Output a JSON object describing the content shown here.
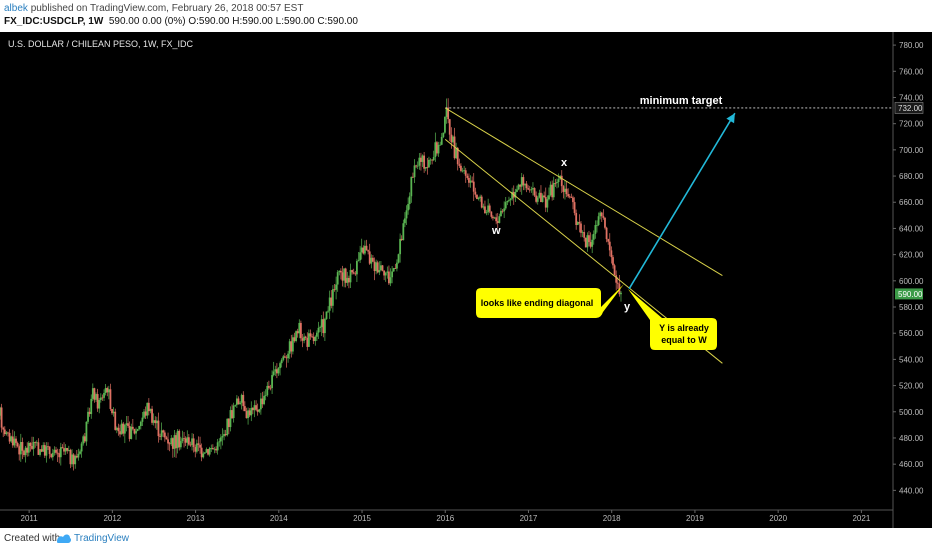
{
  "header": {
    "author": "albek",
    "published_text": "published on TradingView.com, February 26, 2018 00:57 EST",
    "symbol": "FX_IDC:USDCLP, 1W",
    "quote": "590.00 0.00 (0%) O:590.00 H:590.00 L:590.00 C:590.00"
  },
  "footer": {
    "created_with": "Created with",
    "brand": "TradingView"
  },
  "colors": {
    "background": "#000000",
    "up_candle": "#5ab552",
    "down_candle": "#e07163",
    "channel": "#d9d24a",
    "target_arrow": "#22b8d8",
    "callout": "#ffff00",
    "last_price": "#3c9b48"
  },
  "chart_data": {
    "type": "candlestick",
    "title": "U.S. DOLLAR / CHILEAN PESO, 1W, FX_IDC",
    "x_ticks": [
      "2011",
      "2012",
      "2013",
      "2014",
      "2015",
      "2016",
      "2017",
      "2018",
      "2019",
      "2020",
      "2021"
    ],
    "y_ticks": [
      "780.00",
      "760.00",
      "740.00",
      "720.00",
      "700.00",
      "680.00",
      "660.00",
      "640.00",
      "620.00",
      "600.00",
      "580.00",
      "560.00",
      "540.00",
      "520.00",
      "500.00",
      "480.00",
      "460.00",
      "440.00"
    ],
    "ylim": [
      425,
      790
    ],
    "xlim": [
      2010.67,
      2021.4
    ],
    "price_path": [
      [
        2010.67,
        497
      ],
      [
        2010.75,
        482
      ],
      [
        2010.85,
        478
      ],
      [
        2010.95,
        468
      ],
      [
        2011.05,
        476
      ],
      [
        2011.15,
        472
      ],
      [
        2011.25,
        470
      ],
      [
        2011.35,
        466
      ],
      [
        2011.45,
        470
      ],
      [
        2011.55,
        462
      ],
      [
        2011.62,
        470
      ],
      [
        2011.72,
        490
      ],
      [
        2011.78,
        515
      ],
      [
        2011.85,
        505
      ],
      [
        2011.95,
        520
      ],
      [
        2012.05,
        492
      ],
      [
        2012.15,
        485
      ],
      [
        2012.3,
        485
      ],
      [
        2012.45,
        505
      ],
      [
        2012.55,
        490
      ],
      [
        2012.65,
        480
      ],
      [
        2012.75,
        478
      ],
      [
        2012.85,
        478
      ],
      [
        2012.95,
        478
      ],
      [
        2013.05,
        472
      ],
      [
        2013.15,
        472
      ],
      [
        2013.25,
        472
      ],
      [
        2013.35,
        480
      ],
      [
        2013.45,
        500
      ],
      [
        2013.55,
        510
      ],
      [
        2013.65,
        500
      ],
      [
        2013.75,
        500
      ],
      [
        2013.85,
        515
      ],
      [
        2013.95,
        525
      ],
      [
        2014.05,
        540
      ],
      [
        2014.15,
        550
      ],
      [
        2014.25,
        562
      ],
      [
        2014.35,
        555
      ],
      [
        2014.45,
        555
      ],
      [
        2014.55,
        565
      ],
      [
        2014.65,
        585
      ],
      [
        2014.75,
        605
      ],
      [
        2014.85,
        602
      ],
      [
        2014.95,
        612
      ],
      [
        2015.05,
        625
      ],
      [
        2015.15,
        612
      ],
      [
        2015.25,
        612
      ],
      [
        2015.35,
        602
      ],
      [
        2015.45,
        618
      ],
      [
        2015.55,
        650
      ],
      [
        2015.6,
        672
      ],
      [
        2015.7,
        692
      ],
      [
        2015.8,
        688
      ],
      [
        2015.9,
        698
      ],
      [
        2015.98,
        708
      ],
      [
        2016.02,
        730
      ],
      [
        2016.08,
        715
      ],
      [
        2016.15,
        695
      ],
      [
        2016.25,
        680
      ],
      [
        2016.35,
        672
      ],
      [
        2016.45,
        660
      ],
      [
        2016.55,
        650
      ],
      [
        2016.62,
        645
      ],
      [
        2016.7,
        655
      ],
      [
        2016.8,
        665
      ],
      [
        2016.9,
        676
      ],
      [
        2017.0,
        670
      ],
      [
        2017.1,
        665
      ],
      [
        2017.2,
        662
      ],
      [
        2017.3,
        668
      ],
      [
        2017.38,
        678
      ],
      [
        2017.48,
        670
      ],
      [
        2017.55,
        655
      ],
      [
        2017.65,
        640
      ],
      [
        2017.7,
        632
      ],
      [
        2017.75,
        625
      ],
      [
        2017.82,
        640
      ],
      [
        2017.88,
        650
      ],
      [
        2017.95,
        640
      ],
      [
        2018.0,
        615
      ],
      [
        2018.08,
        602
      ],
      [
        2018.12,
        595
      ],
      [
        2018.15,
        590
      ]
    ],
    "last_price": "590.00",
    "target_price": "732.00",
    "channel_lines": [
      {
        "name": "upper",
        "from": [
          2016.02,
          732
        ],
        "to": [
          2019.35,
          604
        ]
      },
      {
        "name": "lower",
        "from": [
          2016.02,
          708
        ],
        "to": [
          2019.35,
          537
        ]
      }
    ],
    "target_line": {
      "y": 732,
      "from_x": 2016.02
    },
    "arrow": {
      "from": [
        2018.23,
        594
      ],
      "to": [
        2019.5,
        728
      ]
    },
    "annotations": {
      "target_label": "minimum target",
      "wave_w": "w",
      "wave_x": "x",
      "wave_y": "y",
      "callout_left": "looks like ending diagonal",
      "callout_right_line1": "Y is already",
      "callout_right_line2": "equal to W"
    }
  }
}
